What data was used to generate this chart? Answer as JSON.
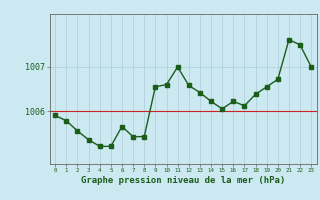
{
  "x": [
    0,
    1,
    2,
    3,
    4,
    5,
    6,
    7,
    8,
    9,
    10,
    11,
    12,
    13,
    14,
    15,
    16,
    17,
    18,
    19,
    20,
    21,
    22,
    23
  ],
  "y": [
    1005.9,
    1005.78,
    1005.55,
    1005.35,
    1005.2,
    1005.2,
    1005.65,
    1005.42,
    1005.42,
    1006.55,
    1006.6,
    1007.0,
    1006.58,
    1006.42,
    1006.22,
    1006.05,
    1006.22,
    1006.12,
    1006.38,
    1006.55,
    1006.72,
    1007.62,
    1007.5,
    1007.0
  ],
  "line_color": "#1a5e1a",
  "marker_color": "#1a5e1a",
  "bg_color": "#cce8f0",
  "grid_color": "#aaccd8",
  "hline_color": "#cc2222",
  "hline_y": 1006.0,
  "yticks": [
    1006,
    1007
  ],
  "xlabel_str": "Graphe pression niveau de la mer (hPa)",
  "xlim": [
    -0.5,
    23.5
  ],
  "ylim": [
    1004.8,
    1008.2
  ]
}
